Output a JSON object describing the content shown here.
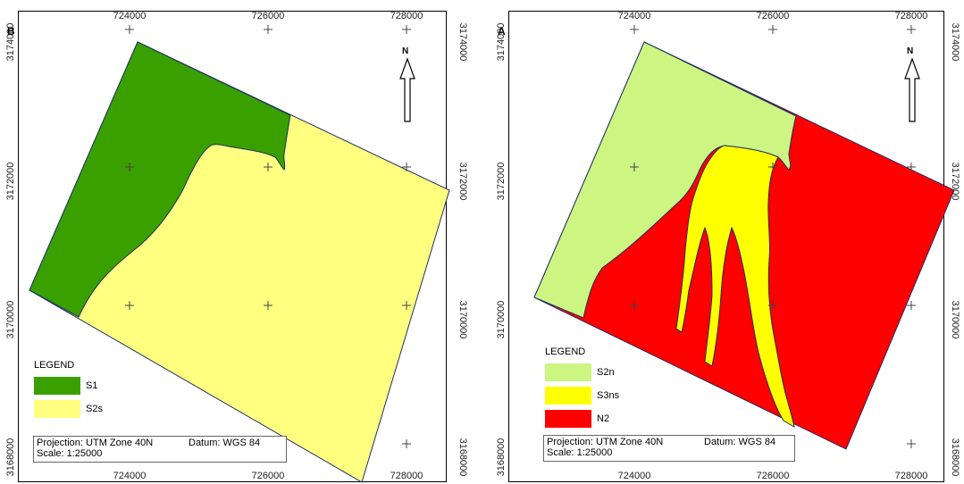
{
  "colors": {
    "S1": "#39a000",
    "S2s": "#ffff80",
    "S2n": "#ccf582",
    "S3ns": "#ffff00",
    "N2": "#ff0000",
    "outline": "#203060",
    "frame": "#000000"
  },
  "panels": [
    {
      "id": "B",
      "letter": "B",
      "north_label": "N",
      "ticks_top": [
        "724000",
        "726000",
        "728000"
      ],
      "ticks_bottom": [
        "724000",
        "726000",
        "728000"
      ],
      "ticks_left": [
        "3174000",
        "3172000",
        "3170000",
        "3168000"
      ],
      "ticks_right": [
        "3174000",
        "3172000",
        "3170000",
        "3168000"
      ],
      "legend": {
        "title": "LEGEND",
        "items": [
          {
            "label": "S1",
            "color_key": "S1"
          },
          {
            "label": "S2s",
            "color_key": "S2s"
          }
        ]
      },
      "info": {
        "projection": "Projection: UTM Zone 40N",
        "datum": "Datum: WGS 84",
        "scale": "Scale: 1:25000"
      }
    },
    {
      "id": "A",
      "letter": "A",
      "north_label": "N",
      "ticks_top": [
        "724000",
        "726000",
        "728000"
      ],
      "ticks_bottom": [
        "724000",
        "726000",
        "728000"
      ],
      "ticks_left": [
        "3174000",
        "3172000",
        "3170000",
        "3168000"
      ],
      "ticks_right": [
        "3174000",
        "3172000",
        "3170000",
        "3168000"
      ],
      "legend": {
        "title": "LEGEND",
        "items": [
          {
            "label": "S2n",
            "color_key": "S2n"
          },
          {
            "label": "S3ns",
            "color_key": "S3ns"
          },
          {
            "label": "N2",
            "color_key": "N2"
          }
        ]
      },
      "info": {
        "projection": "Projection: UTM Zone 40N",
        "datum": "Datum: WGS 84",
        "scale": "Scale: 1:25000"
      }
    }
  ]
}
